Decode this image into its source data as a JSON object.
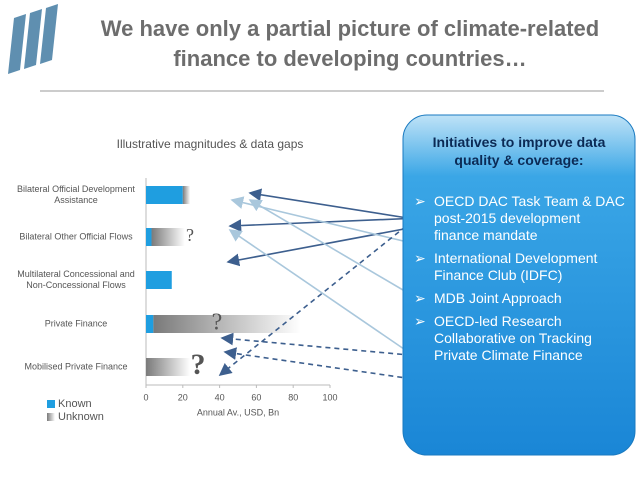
{
  "title": "We have only a partial picture of climate-related finance to developing countries…",
  "chart_data": {
    "type": "bar",
    "orientation": "horizontal",
    "stacked": true,
    "title": "Illustrative magnitudes & data gaps",
    "x_label": "Annual Av., USD, Bn",
    "categories": [
      "Bilateral Official Development Assistance",
      "Bilateral Other Official Flows",
      "Multilateral Concessional and Non-Concessional Flows",
      "Private Finance",
      "Mobilised Private Finance"
    ],
    "series": [
      {
        "name": "Known",
        "color": "#1f9ee0",
        "values": [
          20,
          3,
          14,
          4,
          0
        ]
      },
      {
        "name": "Unknown",
        "color": "#8c8c8c",
        "values": [
          4,
          18,
          0,
          80,
          24
        ]
      }
    ],
    "annotations": [
      "?",
      "?",
      "?"
    ],
    "xlim": [
      0,
      100
    ],
    "xticks": [
      0,
      20,
      40,
      60,
      80,
      100
    ],
    "legend": "bottom-left"
  },
  "initiatives": {
    "title": "Initiatives to improve data quality & coverage:",
    "items": [
      "OECD DAC Task Team & DAC post-2015 development finance mandate",
      "International Development Finance Club (IDFC)",
      "MDB Joint Approach",
      "OECD-led Research Collaborative on Tracking Private Climate Finance"
    ]
  }
}
